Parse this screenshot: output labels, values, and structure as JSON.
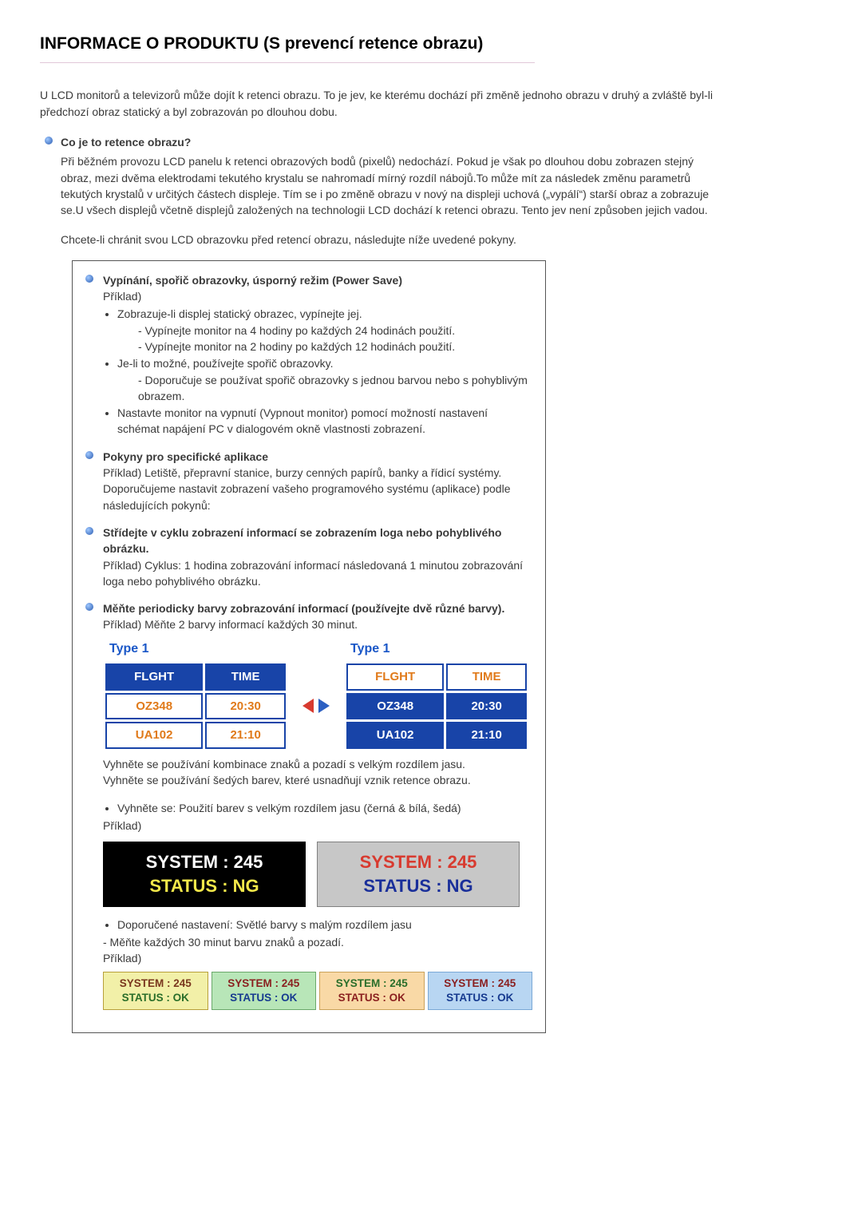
{
  "page_title": "INFORMACE O PRODUKTU (S prevencí retence obrazu)",
  "intro": "U LCD monitorů a televizorů může dojít k retenci obrazu. To je jev, ke kterému dochází při změně jednoho obrazu v druhý a zvláště byl-li předchozí obraz statický a byl zobrazován po dlouhou dobu.",
  "q1": {
    "title": "Co je to retence obrazu?",
    "body1": "Při běžném provozu LCD panelu k retenci obrazových bodů (pixelů) nedochází. Pokud je však po dlouhou dobu zobrazen stejný obraz, mezi dvěma elektrodami tekutého krystalu se nahromadí mírný rozdíl nábojů.To může mít za následek změnu parametrů tekutých krystalů v určitých částech displeje. Tím se i po změně obrazu v nový na displeji uchová („vypálí“) starší obraz a zobrazuje se.U všech displejů včetně displejů založených na technologii LCD dochází k retenci obrazu. Tento jev není způsoben jejich vadou.",
    "body2": "Chcete-li chránit svou LCD obrazovku před retencí obrazu, následujte níže uvedené pokyny."
  },
  "boxed": {
    "s1": {
      "title": "Vypínání, spořič obrazovky, úsporný režim (Power Save)",
      "example_label": "Příklad)",
      "b1": "Zobrazuje-li displej statický obrazec, vypínejte jej.",
      "b1a": "- Vypínejte monitor na 4 hodiny po každých 24 hodinách použití.",
      "b1b": "- Vypínejte monitor na 2 hodiny po každých 12 hodinách použití.",
      "b2": "Je-li to možné, používejte spořič obrazovky.",
      "b2a": "- Doporučuje se používat spořič obrazovky s jednou barvou nebo s pohyblivým obrazem.",
      "b3": "Nastavte monitor na vypnutí (Vypnout monitor) pomocí možností nastavení schémat napájení PC v dialogovém okně vlastnosti zobrazení."
    },
    "s2": {
      "title": "Pokyny pro specifické aplikace",
      "line1": "Příklad) Letiště, přepravní stanice, burzy cenných papírů, banky a řídicí systémy.",
      "line2": "Doporučujeme nastavit zobrazení vašeho programového systému (aplikace) podle následujících pokynů:"
    },
    "s3": {
      "title": "Střídejte v cyklu zobrazení informací se zobrazením loga nebo pohyblivého obrázku.",
      "line1": "Příklad) Cyklus: 1 hodina zobrazování informací následovaná 1 minutou zobrazování loga nebo pohyblivého obrázku."
    },
    "s4": {
      "title": "Měňte periodicky barvy zobrazování informací (používejte dvě různé barvy).",
      "line1": "Příklad) Měňte 2 barvy informací každých 30 minut."
    },
    "type_label": "Type 1",
    "type_table": {
      "headers": [
        "FLGHT",
        "TIME"
      ],
      "rows": [
        [
          "OZ348",
          "20:30"
        ],
        [
          "UA102",
          "21:10"
        ]
      ]
    },
    "type_colors": {
      "left": {
        "header_bg": "#1844a8",
        "header_fg": "#ffffff",
        "cell_bg": "#ffffff",
        "cell_fg": "#e07a1a",
        "border": "#1844a8"
      },
      "right": {
        "header_bg": "#ffffff",
        "header_fg": "#e07a1a",
        "cell_bg": "#1844a8",
        "cell_fg": "#ffffff",
        "border": "#1844a8"
      }
    },
    "arrow_left_color": "#d83a2f",
    "arrow_right_color": "#2b5fc2",
    "after_type_line1": "Vyhněte se používání kombinace znaků a pozadí s velkým rozdílem jasu.",
    "after_type_line2": "Vyhněte se používání šedých barev, které usnadňují vznik retence obrazu.",
    "avoid_bullet": "Vyhněte se: Použití barev s velkým rozdílem jasu (černá & bílá, šedá)",
    "example_word": "Příklad)",
    "sys_text1": "SYSTEM : 245",
    "sys_text2": "STATUS : NG",
    "sys_boxes": [
      {
        "bg": "#000000",
        "c1": "#ffffff",
        "c2": "#f3e84a",
        "border": "#000000"
      },
      {
        "bg": "#c7c7c7",
        "c1": "#d83a2f",
        "c2": "#1a2f9a",
        "border": "#808080"
      }
    ],
    "rec_bullet": "Doporučené nastavení: Světlé barvy s malým rozdílem jasu",
    "rec_line": "- Měňte každých 30 minut barvu znaků a pozadí.",
    "small_text1": "SYSTEM : 245",
    "small_text2": "STATUS : OK",
    "small_boxes": [
      {
        "bg": "#f2f0a8",
        "c1": "#7a371e",
        "c2": "#2a6e2a",
        "border": "#b79f3a"
      },
      {
        "bg": "#b8e6b8",
        "c1": "#8a1f1f",
        "c2": "#163a8f",
        "border": "#6aa86a"
      },
      {
        "bg": "#f9d9a6",
        "c1": "#2a6e2a",
        "c2": "#8a1f1f",
        "border": "#caa25a"
      },
      {
        "bg": "#b8d6f2",
        "c1": "#8a1f1f",
        "c2": "#163a8f",
        "border": "#7aa8d6"
      }
    ]
  }
}
